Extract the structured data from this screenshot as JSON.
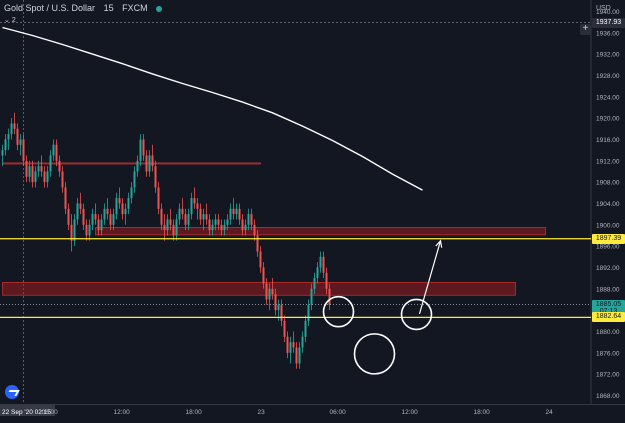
{
  "header": {
    "symbol": "Gold Spot / U.S. Dollar",
    "interval": "15",
    "source": "FXCM",
    "sub_count": "2"
  },
  "axis": {
    "currency": "USD"
  },
  "colors": {
    "bg": "#131722",
    "up": "#26a69a",
    "down": "#ef5350",
    "ma": "#ffffff",
    "level": "#ffeb3b",
    "zone": "#b71c1c"
  },
  "chart_data": {
    "type": "candlestick",
    "y_ticks": [
      1940,
      1936,
      1932,
      1928,
      1924,
      1920,
      1916,
      1912,
      1908,
      1904,
      1900,
      1896,
      1892,
      1888,
      1884,
      1880,
      1876,
      1872,
      1868
    ],
    "y_tick_labels": [
      "1940.00",
      "1936.00",
      "1932.00",
      "1928.00",
      "1924.00",
      "1920.00",
      "1916.00",
      "1912.00",
      "1908.00",
      "1904.00",
      "1900.00",
      "1896.00",
      "1892.00",
      "1888.00",
      "1884.00",
      "1880.00",
      "1876.00",
      "1872.00",
      "1868.00"
    ],
    "x_ticks": [
      {
        "label": "22 Sep '20  02:15",
        "i": 0
      },
      {
        "label": "06:00",
        "i": 15
      },
      {
        "label": "12:00",
        "i": 39
      },
      {
        "label": "18:00",
        "i": 63
      },
      {
        "label": "23",
        "i": 87
      },
      {
        "label": "06:00",
        "i": 111
      },
      {
        "label": "12:00",
        "i": 135
      },
      {
        "label": "18:00",
        "i": 159
      },
      {
        "label": "24",
        "i": 183
      }
    ],
    "price_tags": [
      {
        "price": 1937.93,
        "label": "1937.93",
        "bg": "#2a2e39",
        "fg": "#ffffff"
      },
      {
        "price": 1897.39,
        "label": "1897.39",
        "bg": "#ffeb3b",
        "fg": "#131722"
      },
      {
        "price": 1885.05,
        "label": "1885.05",
        "bg": "#26a69a",
        "fg": "#131722"
      },
      {
        "price": 1883.7,
        "label": "07:13",
        "bg": "#26a69a",
        "fg": "#131722"
      },
      {
        "price": 1882.64,
        "label": "1882.64",
        "bg": "#ffeb3b",
        "fg": "#131722"
      }
    ],
    "horizontal_levels": [
      1897.39,
      1882.64
    ],
    "last_price": 1885.05,
    "crosshair_price": 1937.93,
    "candles": [
      [
        1913,
        1915,
        1911,
        1914
      ],
      [
        1914,
        1917,
        1913,
        1916
      ],
      [
        1916,
        1918,
        1914,
        1917
      ],
      [
        1917,
        1920,
        1916,
        1919
      ],
      [
        1919,
        1921,
        1917,
        1918
      ],
      [
        1918,
        1919,
        1914,
        1915
      ],
      [
        1915,
        1917,
        1913,
        1916
      ],
      [
        1916,
        1917,
        1911,
        1912
      ],
      [
        1912,
        1913,
        1908,
        1909
      ],
      [
        1909,
        1912,
        1908,
        1911
      ],
      [
        1911,
        1912,
        1907,
        1908
      ],
      [
        1908,
        1911,
        1907,
        1910
      ],
      [
        1910,
        1912,
        1909,
        1911
      ],
      [
        1911,
        1913,
        1909,
        1910
      ],
      [
        1910,
        1911,
        1907,
        1908
      ],
      [
        1908,
        1911,
        1907,
        1910
      ],
      [
        1910,
        1914,
        1909,
        1913
      ],
      [
        1913,
        1916,
        1912,
        1915
      ],
      [
        1915,
        1916,
        1911,
        1912
      ],
      [
        1912,
        1913,
        1909,
        1910
      ],
      [
        1910,
        1911,
        1906,
        1907
      ],
      [
        1907,
        1908,
        1902,
        1903
      ],
      [
        1903,
        1904,
        1899,
        1900
      ],
      [
        1900,
        1902,
        1895,
        1897
      ],
      [
        1897,
        1902,
        1896,
        1901
      ],
      [
        1901,
        1905,
        1900,
        1904
      ],
      [
        1904,
        1906,
        1902,
        1903
      ],
      [
        1903,
        1904,
        1899,
        1900
      ],
      [
        1900,
        1901,
        1897,
        1898
      ],
      [
        1898,
        1901,
        1897,
        1900
      ],
      [
        1900,
        1903,
        1899,
        1902
      ],
      [
        1902,
        1904,
        1900,
        1901
      ],
      [
        1901,
        1902,
        1898,
        1899
      ],
      [
        1899,
        1902,
        1898,
        1901
      ],
      [
        1901,
        1904,
        1900,
        1903
      ],
      [
        1903,
        1905,
        1901,
        1902
      ],
      [
        1902,
        1903,
        1899,
        1900
      ],
      [
        1900,
        1903,
        1899,
        1902
      ],
      [
        1902,
        1906,
        1901,
        1905
      ],
      [
        1905,
        1907,
        1903,
        1904
      ],
      [
        1904,
        1905,
        1901,
        1902
      ],
      [
        1902,
        1904,
        1900,
        1903
      ],
      [
        1903,
        1906,
        1902,
        1905
      ],
      [
        1905,
        1908,
        1904,
        1907
      ],
      [
        1907,
        1911,
        1906,
        1910
      ],
      [
        1910,
        1913,
        1909,
        1912
      ],
      [
        1912,
        1917,
        1911,
        1916
      ],
      [
        1916,
        1917,
        1912,
        1913
      ],
      [
        1913,
        1914,
        1909,
        1910
      ],
      [
        1910,
        1914,
        1909,
        1913
      ],
      [
        1913,
        1915,
        1910,
        1911
      ],
      [
        1911,
        1912,
        1906,
        1907
      ],
      [
        1907,
        1908,
        1902,
        1903
      ],
      [
        1903,
        1904,
        1899,
        1900
      ],
      [
        1900,
        1902,
        1897,
        1899
      ],
      [
        1899,
        1902,
        1898,
        1901
      ],
      [
        1901,
        1903,
        1899,
        1900
      ],
      [
        1900,
        1901,
        1897,
        1898
      ],
      [
        1898,
        1902,
        1897,
        1901
      ],
      [
        1901,
        1904,
        1900,
        1903
      ],
      [
        1903,
        1905,
        1901,
        1902
      ],
      [
        1902,
        1903,
        1899,
        1900
      ],
      [
        1900,
        1903,
        1899,
        1902
      ],
      [
        1902,
        1906,
        1901,
        1905
      ],
      [
        1905,
        1907,
        1903,
        1904
      ],
      [
        1904,
        1905,
        1901,
        1903
      ],
      [
        1903,
        1904,
        1900,
        1901
      ],
      [
        1901,
        1903,
        1899,
        1902
      ],
      [
        1902,
        1904,
        1900,
        1901
      ],
      [
        1901,
        1902,
        1898,
        1899
      ],
      [
        1899,
        1901,
        1898,
        1900
      ],
      [
        1900,
        1902,
        1899,
        1901
      ],
      [
        1901,
        1902,
        1899,
        1900
      ],
      [
        1900,
        1901,
        1898,
        1899
      ],
      [
        1899,
        1901,
        1898,
        1900
      ],
      [
        1900,
        1902,
        1899,
        1901
      ],
      [
        1901,
        1904,
        1900,
        1903
      ],
      [
        1903,
        1905,
        1901,
        1902
      ],
      [
        1902,
        1904,
        1901,
        1903
      ],
      [
        1903,
        1904,
        1900,
        1901
      ],
      [
        1901,
        1902,
        1898,
        1899
      ],
      [
        1899,
        1901,
        1898,
        1900
      ],
      [
        1900,
        1903,
        1899,
        1902
      ],
      [
        1902,
        1903,
        1899,
        1900
      ],
      [
        1900,
        1901,
        1897,
        1898
      ],
      [
        1898,
        1899,
        1894,
        1895
      ],
      [
        1895,
        1896,
        1891,
        1892
      ],
      [
        1892,
        1893,
        1888,
        1889
      ],
      [
        1889,
        1890,
        1885,
        1886
      ],
      [
        1886,
        1889,
        1884,
        1888
      ],
      [
        1888,
        1890,
        1886,
        1887
      ],
      [
        1887,
        1888,
        1883,
        1884
      ],
      [
        1884,
        1886,
        1882,
        1885
      ],
      [
        1885,
        1886,
        1881,
        1882
      ],
      [
        1882,
        1883,
        1878,
        1879
      ],
      [
        1879,
        1880,
        1875,
        1876
      ],
      [
        1876,
        1879,
        1874,
        1878
      ],
      [
        1878,
        1880,
        1876,
        1877
      ],
      [
        1877,
        1878,
        1873,
        1874
      ],
      [
        1874,
        1878,
        1873,
        1877
      ],
      [
        1877,
        1880,
        1876,
        1879
      ],
      [
        1879,
        1883,
        1878,
        1882
      ],
      [
        1882,
        1886,
        1881,
        1885
      ],
      [
        1885,
        1889,
        1884,
        1888
      ],
      [
        1888,
        1891,
        1887,
        1890
      ],
      [
        1890,
        1893,
        1889,
        1892
      ],
      [
        1892,
        1895,
        1891,
        1894
      ],
      [
        1894,
        1895,
        1890,
        1891
      ],
      [
        1891,
        1892,
        1887,
        1888
      ],
      [
        1888,
        1889,
        1884,
        1885
      ]
    ],
    "moving_average": [
      [
        0,
        1937
      ],
      [
        10,
        1935.5
      ],
      [
        20,
        1933.8
      ],
      [
        30,
        1932
      ],
      [
        40,
        1930.2
      ],
      [
        50,
        1928.3
      ],
      [
        60,
        1926.5
      ],
      [
        70,
        1924.8
      ],
      [
        80,
        1923
      ],
      [
        90,
        1921
      ],
      [
        100,
        1918.5
      ],
      [
        110,
        1915.8
      ],
      [
        120,
        1912.8
      ],
      [
        130,
        1909.5
      ],
      [
        140,
        1906.5
      ]
    ],
    "zones": [
      {
        "i0": 31,
        "i1": 181,
        "low": 1898.1,
        "high": 1899.5
      },
      {
        "i0": 0,
        "i1": 171,
        "low": 1886.8,
        "high": 1889.2
      },
      {
        "i0": 0,
        "i1": 86,
        "low": 1911.4,
        "high": 1911.6
      }
    ],
    "circles": [
      {
        "i": 112,
        "price": 1883.7
      },
      {
        "i": 124,
        "price": 1875.8
      },
      {
        "i": 138,
        "price": 1883.2
      }
    ],
    "arrows": [
      {
        "i0": 139,
        "p0": 1883.3,
        "i1": 146,
        "p1": 1897.0
      }
    ]
  }
}
